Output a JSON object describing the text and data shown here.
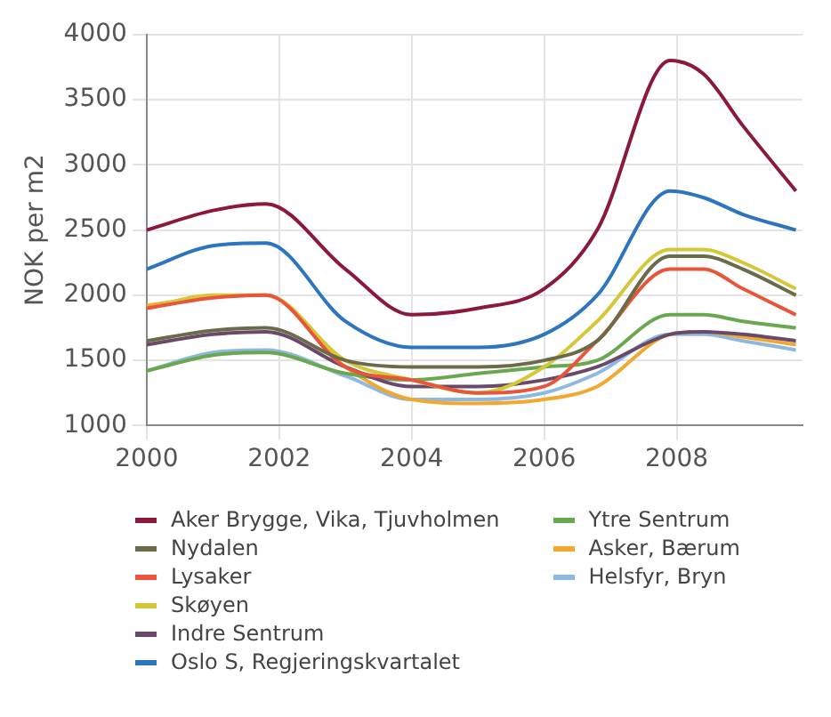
{
  "chart_data": {
    "type": "line",
    "ylabel": "NOK per m2",
    "x": [
      2000,
      2001,
      2001.8,
      2003,
      2004,
      2005,
      2006,
      2006.8,
      2007.9,
      2008.4,
      2009,
      2009.8
    ],
    "xlim": [
      2000,
      2009.9
    ],
    "xticks": [
      2000,
      2002,
      2004,
      2006,
      2008
    ],
    "ylim": [
      1000,
      4000
    ],
    "yticks": [
      1000,
      1500,
      2000,
      2500,
      3000,
      3500,
      4000
    ],
    "grid": true,
    "legend": "bottom",
    "marker": "none",
    "line_style": "solid",
    "series": [
      {
        "name": "Aker Brygge, Vika, Tjuvholmen",
        "color": "#8b1a3a",
        "values": [
          2500,
          2650,
          2700,
          2200,
          1850,
          1900,
          2050,
          2500,
          3800,
          3700,
          3300,
          2800
        ]
      },
      {
        "name": "Nydalen",
        "color": "#6b6b4a",
        "values": [
          1650,
          1730,
          1750,
          1500,
          1450,
          1450,
          1500,
          1650,
          2300,
          2300,
          2200,
          2000
        ]
      },
      {
        "name": "Lysaker",
        "color": "#e8553a",
        "values": [
          1900,
          1980,
          2000,
          1450,
          1350,
          1250,
          1300,
          1650,
          2200,
          2200,
          2050,
          1850
        ]
      },
      {
        "name": "Skøyen",
        "color": "#d4c83a",
        "values": [
          1900,
          2000,
          2000,
          1500,
          1350,
          1250,
          1450,
          1800,
          2350,
          2350,
          2250,
          2050
        ]
      },
      {
        "name": "Indre Sentrum",
        "color": "#6a4a6a",
        "values": [
          1620,
          1700,
          1720,
          1450,
          1300,
          1300,
          1350,
          1450,
          1700,
          1720,
          1700,
          1650
        ]
      },
      {
        "name": "Oslo S, Regjeringskvartalet",
        "color": "#2e75c0",
        "values": [
          2200,
          2380,
          2400,
          1800,
          1600,
          1600,
          1700,
          2000,
          2800,
          2750,
          2620,
          2500
        ]
      },
      {
        "name": "Ytre Sentrum",
        "color": "#6aa84f",
        "values": [
          1420,
          1540,
          1560,
          1400,
          1350,
          1400,
          1450,
          1500,
          1850,
          1850,
          1800,
          1750
        ]
      },
      {
        "name": "Asker, Bærum",
        "color": "#f0a830",
        "values": [
          1920,
          1990,
          2000,
          1450,
          1200,
          1170,
          1200,
          1300,
          1700,
          1720,
          1680,
          1620
        ]
      },
      {
        "name": "Helsfyr, Bryn",
        "color": "#8fb8e0",
        "values": [
          1420,
          1560,
          1580,
          1380,
          1200,
          1200,
          1250,
          1400,
          1700,
          1700,
          1650,
          1580
        ]
      }
    ]
  }
}
